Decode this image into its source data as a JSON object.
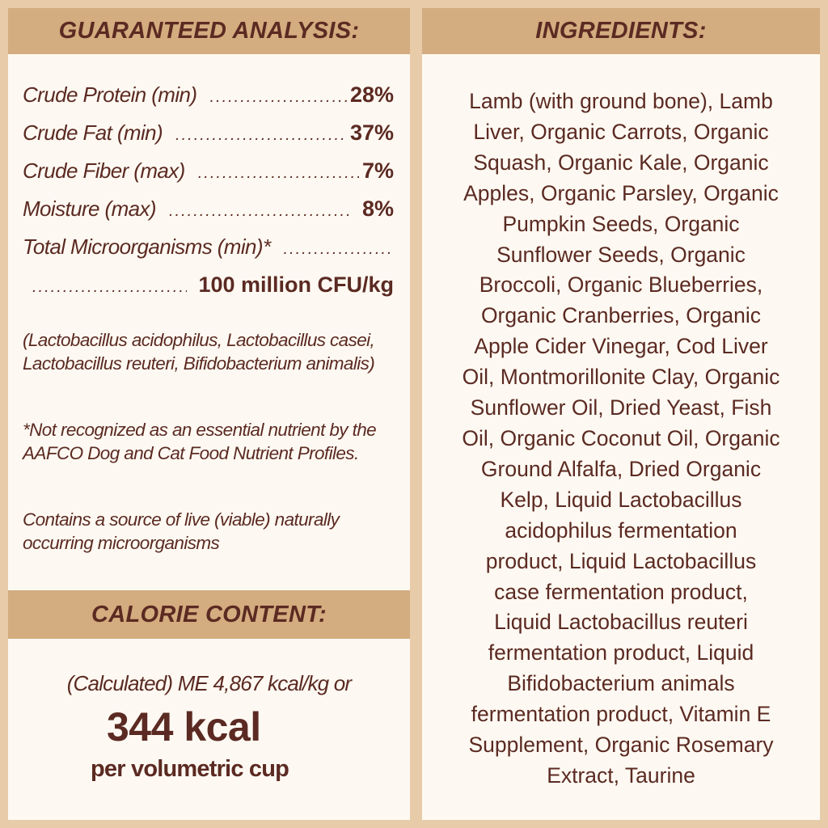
{
  "analysis": {
    "title": "GUARANTEED ANALYSIS:",
    "rows": [
      {
        "label": "Crude Protein (min)",
        "value": "28%"
      },
      {
        "label": "Crude Fat (min)",
        "value": "37%"
      },
      {
        "label": "Crude Fiber (max)",
        "value": "7%"
      },
      {
        "label": "Moisture (max)",
        "value": "8%"
      },
      {
        "label": "Total Microorganisms (min)*",
        "value": ""
      },
      {
        "label": "",
        "value": "100 million CFU/kg"
      }
    ],
    "dots": "..............................",
    "strains": "(Lactobacillus acidophilus, Lactobacillus casei, Lactobacillus reuteri, Bifidobacterium animalis)",
    "footnote": "*Not recognized as an essential nutrient by the AAFCO Dog and Cat Food Nutrient Profiles.",
    "live_note": "Contains a source of live (viable) naturally occurring microorganisms"
  },
  "calorie": {
    "title": "CALORIE CONTENT:",
    "line1": "(Calculated) ME 4,867 kcal/kg or",
    "big": "344 kcal",
    "line3": "per volumetric cup"
  },
  "ingredients": {
    "title": "INGREDIENTS:",
    "lines": [
      "Lamb (with ground bone), Lamb",
      "Liver, Organic Carrots, Organic",
      "Squash, Organic Kale, Organic",
      "Apples, Organic Parsley, Organic",
      "Pumpkin Seeds, Organic",
      "Sunflower Seeds, Organic",
      "Broccoli, Organic Blueberries,",
      "Organic Cranberries, Organic",
      "Apple Cider Vinegar, Cod Liver",
      "Oil, Montmorillonite Clay, Organic",
      "Sunflower Oil, Dried Yeast, Fish",
      "Oil, Organic Coconut Oil, Organic",
      "Ground Alfalfa, Dried Organic",
      "Kelp, Liquid Lactobacillus",
      "acidophilus fermentation",
      "product, Liquid Lactobacillus",
      "case fermentation product,",
      "Liquid Lactobacillus reuteri",
      "fermentation product, Liquid",
      "Bifidobacterium animals",
      "fermentation product, Vitamin E",
      "Supplement, Organic Rosemary",
      "Extract, Taurine"
    ]
  },
  "colors": {
    "text": "#5b2a22",
    "band": "#d3ac7f",
    "panel": "#fdf9f2",
    "background": "#e8cba9"
  }
}
